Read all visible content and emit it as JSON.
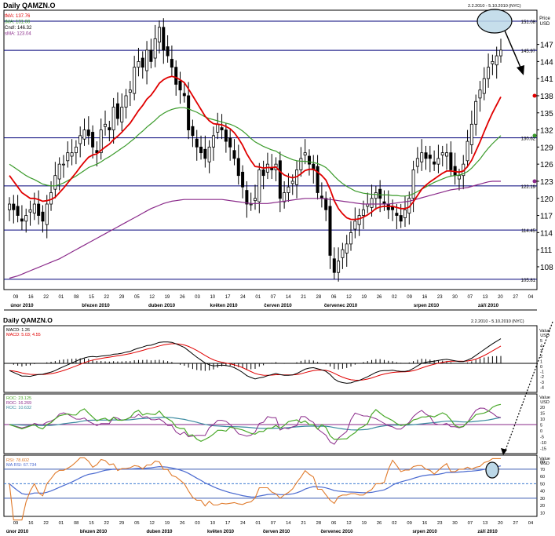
{
  "title": "Daily QAMZN.O",
  "date_range": "2.2.2010 - 5.10.2010 (NYC)",
  "colors": {
    "price": "#000000",
    "ema_red": "#e00000",
    "ema_green": "#3a9a2a",
    "sma_purple": "#8a2a8a",
    "hline": "#00007a",
    "ellipse_fill": "#bcd8e8",
    "macd_signal": "#e00000",
    "roc_green": "#4aa92a",
    "roc_purple": "#8a2a8a",
    "roc_blue": "#3a8aa0",
    "rsi_orange": "#e07a2a",
    "rsi_ma_blue": "#4a6ad0"
  },
  "main_panel": {
    "legend": [
      {
        "label": "tMA:",
        "value": "137.76",
        "color": "#e00000"
      },
      {
        "label": "tMA:",
        "value": "131.00",
        "color": "#3a9a2a"
      },
      {
        "label": "Cnd!:",
        "value": "146.32",
        "color": "#000000"
      },
      {
        "label": "sMA:",
        "value": "123.04",
        "color": "#8a2a8a"
      }
    ],
    "axis_title": [
      "Price",
      "USD"
    ],
    "y_ticks": [
      147,
      144,
      141,
      138,
      135,
      132,
      129,
      126,
      123,
      120,
      117,
      114,
      111,
      108
    ],
    "hlines": [
      {
        "value": 151.08,
        "label": "151.08"
      },
      {
        "value": 145.97,
        "label": "145.97"
      },
      {
        "value": 130.62,
        "label": "130.62"
      },
      {
        "value": 122.19,
        "label": "122.19"
      },
      {
        "value": 114.45,
        "label": "114.45"
      },
      {
        "value": 105.81,
        "label": "105.81"
      }
    ],
    "x_day_ticks": [
      "09",
      "16",
      "22",
      "01",
      "08",
      "15",
      "22",
      "29",
      "05",
      "12",
      "19",
      "26",
      "03",
      "10",
      "17",
      "24",
      "01",
      "07",
      "14",
      "21",
      "28",
      "06",
      "12",
      "19",
      "26",
      "02",
      "09",
      "16",
      "23",
      "30",
      "07",
      "13",
      "20",
      "27",
      "04"
    ],
    "month_labels": [
      "únor 2010",
      "březen 2010",
      "duben 2010",
      "květen 2010",
      "červen 2010",
      "červenec 2010",
      "srpen 2010",
      "září 2010"
    ]
  },
  "macd_panel": {
    "title": "Daily QAMZN.O",
    "date_range": "2.2.2010 - 5.10.2010 (NYC)",
    "legend": [
      {
        "label": "MACD:",
        "value": "1.26",
        "color": "#000000"
      },
      {
        "label": "MACD: 5.03;",
        "value": "4.55",
        "color": "#e00000"
      }
    ],
    "axis_title": [
      "Value",
      "USD"
    ],
    "y_ticks": [
      "5",
      "4",
      "3",
      "2",
      "1",
      "0",
      "-1",
      "-2",
      "-3",
      "-4"
    ]
  },
  "roc_panel": {
    "legend": [
      {
        "label": "ROC:",
        "value": "23.125",
        "color": "#4aa92a"
      },
      {
        "label": "ROC:",
        "value": "16.269",
        "color": "#8a2a8a"
      },
      {
        "label": "ROC:",
        "value": "10.632",
        "color": "#3a8aa0"
      }
    ],
    "axis_title": [
      "Value",
      "USD"
    ],
    "y_ticks": [
      "20",
      "15",
      "10",
      "5",
      "0",
      "-5",
      "-10",
      "-15"
    ]
  },
  "rsi_panel": {
    "legend": [
      {
        "label": "RSI:",
        "value": "78.602",
        "color": "#e07a2a"
      },
      {
        "label": "MA RSI:",
        "value": "67.734",
        "color": "#4a6ad0"
      }
    ],
    "axis_title": [
      "Value",
      "USD"
    ],
    "y_ticks": [
      "80",
      "70",
      "60",
      "50",
      "40",
      "30",
      "20",
      "10"
    ],
    "levels": [
      70,
      50,
      30
    ]
  },
  "chart_data": {
    "type": "line",
    "title": "Daily QAMZN.O",
    "ylabel": "Price USD",
    "ylim": [
      104,
      153
    ],
    "series": [
      {
        "name": "Cnd!",
        "note": "close (candlesticks)",
        "values": [
          119,
          118,
          117,
          116,
          117,
          118,
          119,
          117,
          116,
          119,
          121,
          124,
          126,
          126,
          128,
          128,
          129,
          131,
          132,
          131,
          129,
          128,
          132,
          133,
          132,
          136,
          134,
          136,
          138,
          139,
          143,
          144,
          143,
          146,
          144,
          148,
          150,
          146,
          145,
          143,
          140,
          139,
          138,
          132,
          131,
          129,
          128,
          127,
          129,
          131,
          133,
          132,
          130,
          129,
          127,
          124,
          122,
          119,
          119,
          120,
          125,
          124,
          126,
          125,
          126,
          120,
          121,
          122,
          123,
          125,
          127,
          128,
          126,
          125,
          121,
          120,
          118,
          110,
          107,
          109,
          111,
          112,
          114,
          116,
          117,
          118,
          119,
          120,
          121,
          120,
          119,
          118,
          118,
          117,
          116,
          118,
          120,
          125,
          127,
          128,
          127,
          127,
          126,
          127,
          128,
          128,
          125,
          124,
          124,
          126,
          130,
          133,
          137,
          139,
          141,
          143,
          144,
          145,
          146
        ]
      },
      {
        "name": "tMA",
        "values": [
          124,
          123,
          122,
          121,
          120.5,
          120,
          120,
          119.8,
          119.5,
          119.6,
          119.8,
          120.2,
          121,
          121.8,
          122.7,
          123.6,
          124.5,
          125.5,
          126.4,
          127.2,
          127.6,
          127.8,
          128.4,
          129,
          129.5,
          130.3,
          130.9,
          131.6,
          132.4,
          133.2,
          134.3,
          135.4,
          136.3,
          137.4,
          138.1,
          139.1,
          140.2,
          140.8,
          141.2,
          141.4,
          141.2,
          140.8,
          140.3,
          139.2,
          138,
          136.8,
          135.6,
          134.4,
          133.6,
          133.1,
          133,
          132.9,
          132.6,
          132.2,
          131.5,
          130.5,
          129.3,
          127.8,
          126.6,
          125.6,
          125.5,
          125.3,
          125.4,
          125.4,
          125.5,
          124.7,
          124.1,
          123.8,
          123.6,
          123.8,
          124.3,
          124.9,
          125.1,
          125.1,
          124.6,
          124,
          123.2,
          121.6,
          119.6,
          118.2,
          117.3,
          116.6,
          116.3,
          116.3,
          116.4,
          116.7,
          117.1,
          117.6,
          118.2,
          118.5,
          118.6,
          118.6,
          118.6,
          118.4,
          118.2,
          118.2,
          118.5,
          119.4,
          120.5,
          121.6,
          122.3,
          122.9,
          123.4,
          123.9,
          124.4,
          124.8,
          124.8,
          124.7,
          124.6,
          124.8,
          125.6,
          126.7,
          128.3,
          129.9,
          131.7,
          133.4,
          135,
          136.4,
          137.8
        ]
      },
      {
        "name": "tMA (green)",
        "values": [
          126,
          125.5,
          125,
          124.5,
          124,
          123.6,
          123.3,
          122.9,
          122.5,
          122.3,
          122.2,
          122.2,
          122.4,
          122.7,
          123.1,
          123.5,
          123.9,
          124.4,
          124.9,
          125.4,
          125.7,
          126,
          126.4,
          126.9,
          127.3,
          127.8,
          128.3,
          128.8,
          129.3,
          129.9,
          130.5,
          131.2,
          131.8,
          132.5,
          133.1,
          133.7,
          134.4,
          134.9,
          135.3,
          135.6,
          135.8,
          135.9,
          135.9,
          135.7,
          135.4,
          135.1,
          134.7,
          134.3,
          134,
          133.8,
          133.6,
          133.4,
          133.2,
          133,
          132.7,
          132.3,
          131.8,
          131.2,
          130.5,
          129.9,
          129.5,
          129.1,
          128.8,
          128.5,
          128.3,
          127.8,
          127.4,
          127.1,
          126.8,
          126.6,
          126.5,
          126.5,
          126.4,
          126.3,
          126.1,
          125.8,
          125.4,
          124.7,
          123.9,
          123.2,
          122.6,
          122.1,
          121.7,
          121.3,
          121.1,
          120.9,
          120.8,
          120.7,
          120.7,
          120.6,
          120.6,
          120.6,
          120.5,
          120.5,
          120.4,
          120.4,
          120.5,
          120.8,
          121.2,
          121.6,
          122,
          122.4,
          122.8,
          123.1,
          123.4,
          123.7,
          123.9,
          124,
          124.1,
          124.3,
          124.7,
          125.3,
          126.1,
          126.9,
          127.9,
          128.8,
          129.6,
          130.3,
          131
        ]
      },
      {
        "name": "sMA",
        "values": [
          106,
          106.2,
          106.4,
          106.7,
          107,
          107.3,
          107.6,
          107.9,
          108.2,
          108.5,
          108.8,
          109.1,
          109.4,
          109.8,
          110.2,
          110.6,
          111,
          111.4,
          111.8,
          112.2,
          112.6,
          113,
          113.4,
          113.8,
          114.2,
          114.6,
          115,
          115.4,
          115.8,
          116.2,
          116.6,
          117,
          117.4,
          117.8,
          118.2,
          118.5,
          118.8,
          119.1,
          119.3,
          119.5,
          119.6,
          119.7,
          119.8,
          119.8,
          119.8,
          119.8,
          119.8,
          119.8,
          119.8,
          119.8,
          119.8,
          119.8,
          119.7,
          119.6,
          119.5,
          119.4,
          119.3,
          119.2,
          119.1,
          119.1,
          119.1,
          119.1,
          119.1,
          119.2,
          119.3,
          119.4,
          119.5,
          119.6,
          119.7,
          119.8,
          119.9,
          120,
          120,
          120,
          120,
          120,
          119.9,
          119.8,
          119.7,
          119.6,
          119.5,
          119.4,
          119.3,
          119.2,
          119.1,
          119,
          119,
          119,
          119,
          119,
          119,
          119,
          119.1,
          119.2,
          119.3,
          119.4,
          119.5,
          119.7,
          119.9,
          120.1,
          120.3,
          120.5,
          120.7,
          120.9,
          121.1,
          121.3,
          121.5,
          121.6,
          121.7,
          121.8,
          121.9,
          122.1,
          122.3,
          122.5,
          122.7,
          122.9,
          123,
          123,
          123
        ]
      }
    ]
  }
}
